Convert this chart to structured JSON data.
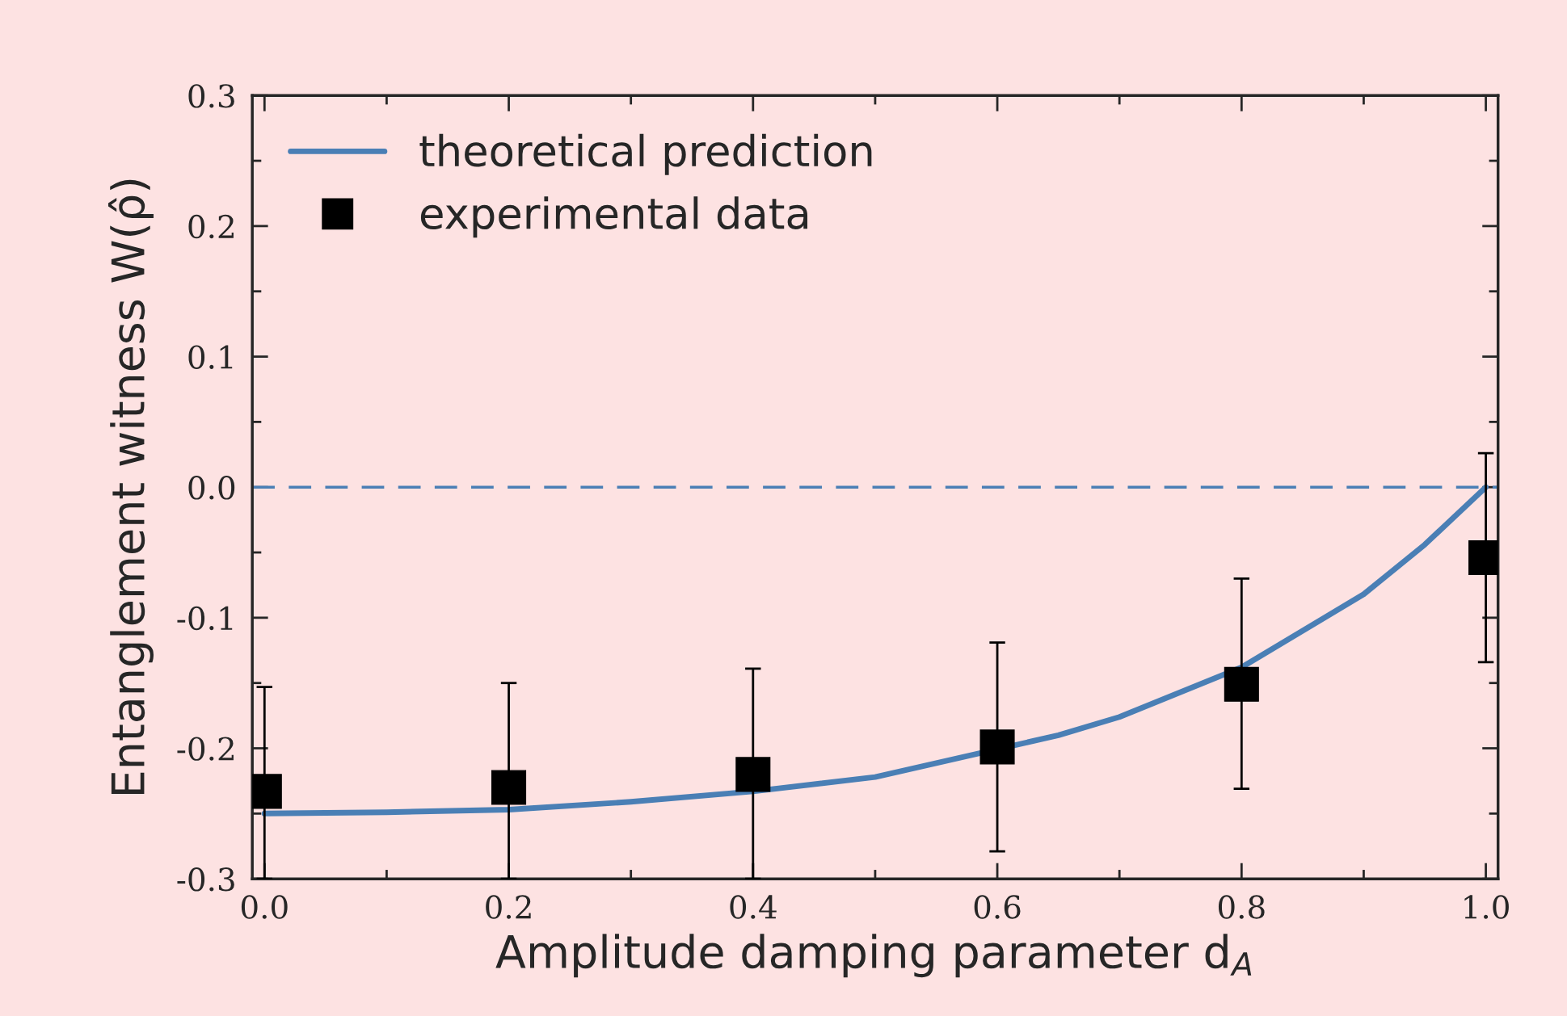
{
  "chart_data": {
    "type": "line",
    "xlabel": "Amplitude damping parameter d$_{A}$",
    "ylabel": "Entanglement witness W(ρ̂)",
    "xlim": [
      -0.01,
      1.01
    ],
    "ylim": [
      -0.3,
      0.3
    ],
    "xticks": [
      {
        "value": 0,
        "label": "0.0"
      },
      0.2,
      0.4,
      0.6,
      0.8,
      {
        "value": 1,
        "label": "1.0"
      }
    ],
    "yticks": [
      -0.3,
      -0.2,
      -0.1,
      {
        "value": 0,
        "label": "0.0"
      },
      0.1,
      0.2,
      0.3
    ],
    "grid": false,
    "legend": "top left",
    "ref_lines": [
      {
        "axis": "y",
        "value": 0,
        "color": "#4a7fb5",
        "line_style": "dashed"
      }
    ],
    "series": [
      {
        "name": "theoretical prediction",
        "color": "#4a7fb5",
        "marker": "none",
        "line_style": "solid",
        "x": [
          0,
          0.1,
          0.2,
          0.3,
          0.4,
          0.5,
          0.65,
          0.7,
          0.8,
          0.9,
          0.95,
          1.0
        ],
        "values": [
          -0.25,
          -0.249,
          -0.247,
          -0.241,
          -0.233,
          -0.222,
          -0.19,
          -0.176,
          -0.138,
          -0.082,
          -0.044,
          0
        ]
      },
      {
        "name": "experimental data",
        "type": "scatter",
        "color": "#000000",
        "marker": "square",
        "x": [
          0,
          0.2,
          0.4,
          0.6,
          0.8,
          1.0
        ],
        "values": [
          -0.233,
          -0.23,
          -0.22,
          -0.199,
          -0.151,
          -0.054
        ],
        "errors": [
          [
            -0.3,
            -0.153
          ],
          [
            -0.3,
            -0.15
          ],
          [
            -0.3,
            -0.139
          ],
          [
            -0.279,
            -0.119
          ],
          [
            -0.231,
            -0.07
          ],
          [
            -0.134,
            0.026
          ]
        ]
      }
    ]
  }
}
